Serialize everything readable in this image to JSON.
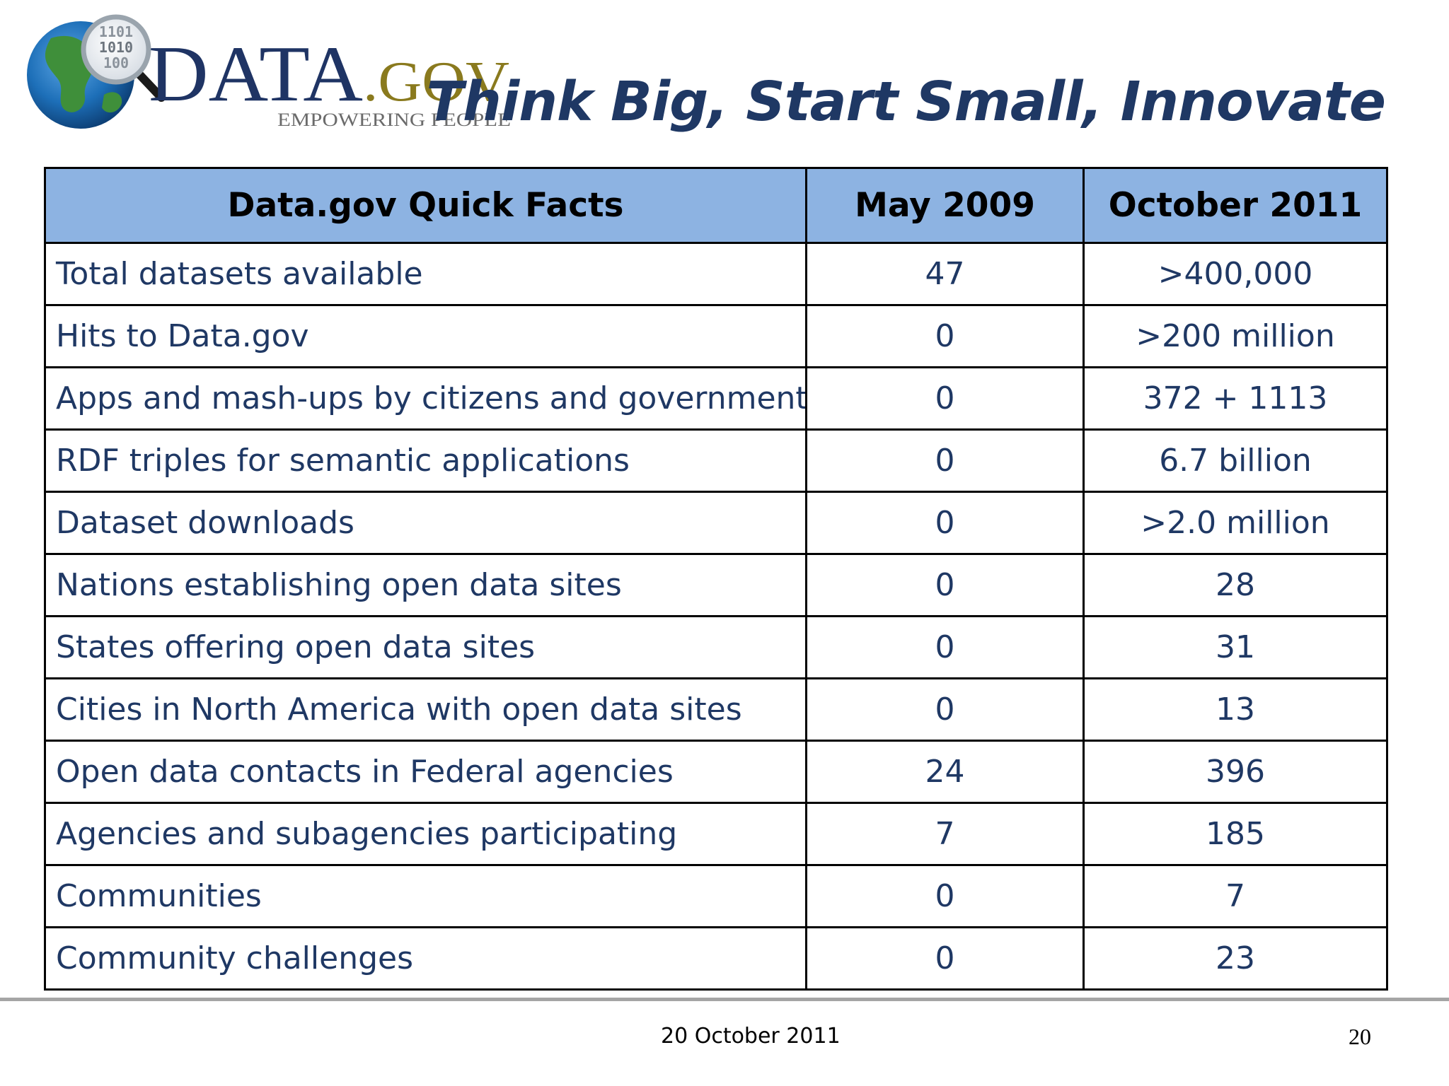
{
  "logo": {
    "wordmark_main": "DATA",
    "wordmark_suffix": ".GOV",
    "tagline": "EMPOWERING PEOPLE",
    "binary_text": [
      "1101",
      "1010",
      "100"
    ],
    "colors": {
      "navy": "#1f3464",
      "olive": "#8a7a1e",
      "globe_blue": "#1d6fb8",
      "globe_green": "#3f8f3a"
    }
  },
  "title": "Think Big, Start Small, Innovate",
  "table": {
    "headers": [
      "Data.gov Quick Facts",
      "May 2009",
      "October 2011"
    ],
    "rows": [
      {
        "label": "Total datasets available",
        "may_2009": "47",
        "oct_2011": ">400,000"
      },
      {
        "label": "Hits to Data.gov",
        "may_2009": "0",
        "oct_2011": ">200 million"
      },
      {
        "label": "Apps and mash-ups by citizens and government",
        "may_2009": "0",
        "oct_2011": "372 + 1113"
      },
      {
        "label": "RDF triples for semantic applications",
        "may_2009": "0",
        "oct_2011": "6.7 billion"
      },
      {
        "label": "Dataset downloads",
        "may_2009": "0",
        "oct_2011": ">2.0 million"
      },
      {
        "label": "Nations establishing open data sites",
        "may_2009": "0",
        "oct_2011": "28"
      },
      {
        "label": "States offering open data sites",
        "may_2009": "0",
        "oct_2011": "31"
      },
      {
        "label": "Cities in North America with open data sites",
        "may_2009": "0",
        "oct_2011": "13"
      },
      {
        "label": "Open data contacts in Federal agencies",
        "may_2009": "24",
        "oct_2011": "396"
      },
      {
        "label": "Agencies and subagencies participating",
        "may_2009": "7",
        "oct_2011": "185"
      },
      {
        "label": "Communities",
        "may_2009": "0",
        "oct_2011": "7"
      },
      {
        "label": "Community challenges",
        "may_2009": "0",
        "oct_2011": "23"
      }
    ],
    "colors": {
      "header_bg": "#8db3e2",
      "text": "#1f3864",
      "border": "#000000"
    }
  },
  "footer": {
    "date": "20 October 2011",
    "page_number": "20"
  }
}
